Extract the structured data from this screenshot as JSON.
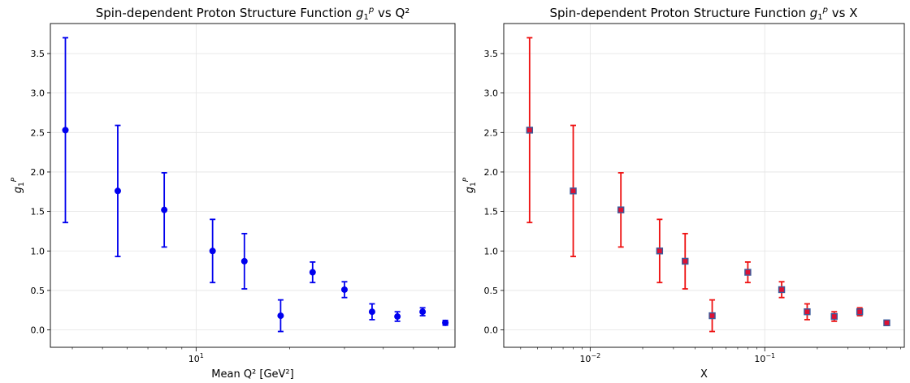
{
  "chart_data": [
    {
      "type": "scatter",
      "title_parts": [
        "Spin-dependent Proton Structure Function ",
        "g",
        "1",
        "p",
        " vs Q²"
      ],
      "xlabel": "Mean Q² [GeV²]",
      "ylabel_parts": [
        "g",
        "1",
        "P"
      ],
      "xscale": "log",
      "xlim": [
        3.4,
        68
      ],
      "ylim": [
        -0.22,
        3.88
      ],
      "yticks": [
        "0.0",
        "0.5",
        "1.0",
        "1.5",
        "2.0",
        "2.5",
        "3.0",
        "3.5"
      ],
      "xticks_major": [
        {
          "base": "10",
          "exp": "1"
        }
      ],
      "grid": true,
      "marker": "circle",
      "color": "#0000ee",
      "points": [
        {
          "x": 3.8,
          "y": 2.53,
          "yerr": 1.17
        },
        {
          "x": 5.6,
          "y": 1.76,
          "yerr": 0.83
        },
        {
          "x": 7.9,
          "y": 1.52,
          "yerr": 0.47
        },
        {
          "x": 11.3,
          "y": 1.0,
          "yerr": 0.4
        },
        {
          "x": 14.3,
          "y": 0.87,
          "yerr": 0.35
        },
        {
          "x": 18.7,
          "y": 0.18,
          "yerr": 0.2
        },
        {
          "x": 23.7,
          "y": 0.73,
          "yerr": 0.13
        },
        {
          "x": 30.0,
          "y": 0.51,
          "yerr": 0.1
        },
        {
          "x": 36.8,
          "y": 0.23,
          "yerr": 0.1
        },
        {
          "x": 44.4,
          "y": 0.17,
          "yerr": 0.06
        },
        {
          "x": 53.5,
          "y": 0.23,
          "yerr": 0.05
        },
        {
          "x": 63.3,
          "y": 0.09,
          "yerr": 0.03
        }
      ]
    },
    {
      "type": "scatter",
      "title_parts": [
        "Spin-dependent Proton Structure Function ",
        "g",
        "1",
        "p",
        " vs X"
      ],
      "xlabel": "X",
      "ylabel_parts": [
        "g",
        "1",
        "P"
      ],
      "xscale": "log",
      "xlim": [
        0.0032,
        0.63
      ],
      "ylim": [
        -0.22,
        3.88
      ],
      "yticks": [
        "0.0",
        "0.5",
        "1.0",
        "1.5",
        "2.0",
        "2.5",
        "3.0",
        "3.5"
      ],
      "xticks_major": [
        {
          "base": "10",
          "exp": "−2"
        },
        {
          "base": "10",
          "exp": "−1"
        }
      ],
      "grid": true,
      "marker": "square",
      "color": "#ee1111",
      "marker_face": "#dd1133",
      "marker_edge": "#3a5a9a",
      "points": [
        {
          "x": 0.0045,
          "y": 2.53,
          "yerr": 1.17
        },
        {
          "x": 0.008,
          "y": 1.76,
          "yerr": 0.83
        },
        {
          "x": 0.015,
          "y": 1.52,
          "yerr": 0.47
        },
        {
          "x": 0.025,
          "y": 1.0,
          "yerr": 0.4
        },
        {
          "x": 0.035,
          "y": 0.87,
          "yerr": 0.35
        },
        {
          "x": 0.05,
          "y": 0.18,
          "yerr": 0.2
        },
        {
          "x": 0.08,
          "y": 0.73,
          "yerr": 0.13
        },
        {
          "x": 0.125,
          "y": 0.51,
          "yerr": 0.1
        },
        {
          "x": 0.175,
          "y": 0.23,
          "yerr": 0.1
        },
        {
          "x": 0.25,
          "y": 0.17,
          "yerr": 0.06
        },
        {
          "x": 0.35,
          "y": 0.23,
          "yerr": 0.05
        },
        {
          "x": 0.5,
          "y": 0.09,
          "yerr": 0.03
        }
      ]
    }
  ]
}
